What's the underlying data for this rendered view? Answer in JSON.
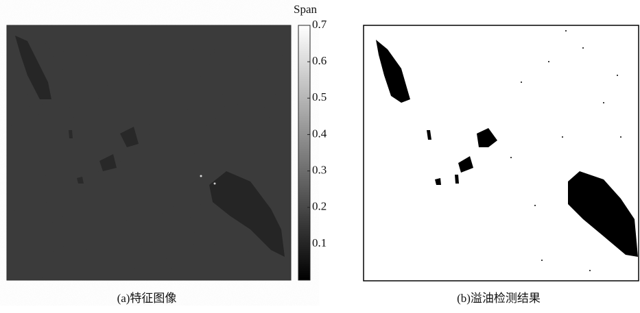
{
  "panels": [
    {
      "caption": "(a)特征图像"
    },
    {
      "caption": "(b)溢油检测结果"
    }
  ],
  "colorbar": {
    "label": "Span",
    "lim": [
      0,
      0.7
    ],
    "ticks": [
      0.1,
      0.2,
      0.3,
      0.4,
      0.5,
      0.6,
      0.7
    ]
  }
}
